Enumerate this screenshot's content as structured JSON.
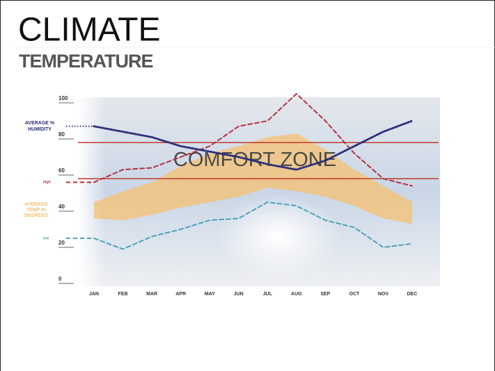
{
  "title": "CLIMATE",
  "subtitle": "TEMPERATURE",
  "chart_data": {
    "type": "line",
    "categories": [
      "JAN",
      "FEB",
      "MAR",
      "APR",
      "MAY",
      "JUN",
      "JUL",
      "AUG",
      "SEP",
      "OCT",
      "NOV",
      "DEC"
    ],
    "ylim": [
      0,
      106
    ],
    "yticks": [
      0,
      20,
      40,
      60,
      80,
      100
    ],
    "series": [
      {
        "name": [
          "high"
        ],
        "color": "#b5303f",
        "dash": "dashed",
        "values": [
          56,
          63,
          64,
          70,
          76,
          87,
          90,
          105,
          90,
          72,
          58,
          54
        ]
      },
      {
        "name": [
          "low"
        ],
        "color": "#4aa3b8",
        "dash": "dashed",
        "values": [
          25,
          19,
          26,
          30,
          35,
          36,
          45,
          43,
          35,
          31,
          20,
          22
        ]
      },
      {
        "name": [
          "AVERAGE %",
          "HUMIDITY"
        ],
        "color": "#2a2f7a",
        "dash": "dotted",
        "values": [
          87,
          84,
          81,
          76,
          73,
          70,
          66,
          63,
          68,
          76,
          84,
          90
        ]
      }
    ],
    "band": {
      "name": [
        "AVERAGE",
        "TEMP IN",
        "DEGREES"
      ],
      "color": "#f5c070",
      "upper": [
        45,
        51,
        56,
        65,
        72,
        76,
        81,
        83,
        74,
        63,
        54,
        45
      ],
      "lower": [
        36,
        35,
        38,
        42,
        45,
        48,
        53,
        51,
        48,
        43,
        36,
        33
      ]
    },
    "comfort_zone": {
      "label": "COMFORT ZONE",
      "lines": [
        58,
        78
      ],
      "color": "#c0392b"
    }
  }
}
